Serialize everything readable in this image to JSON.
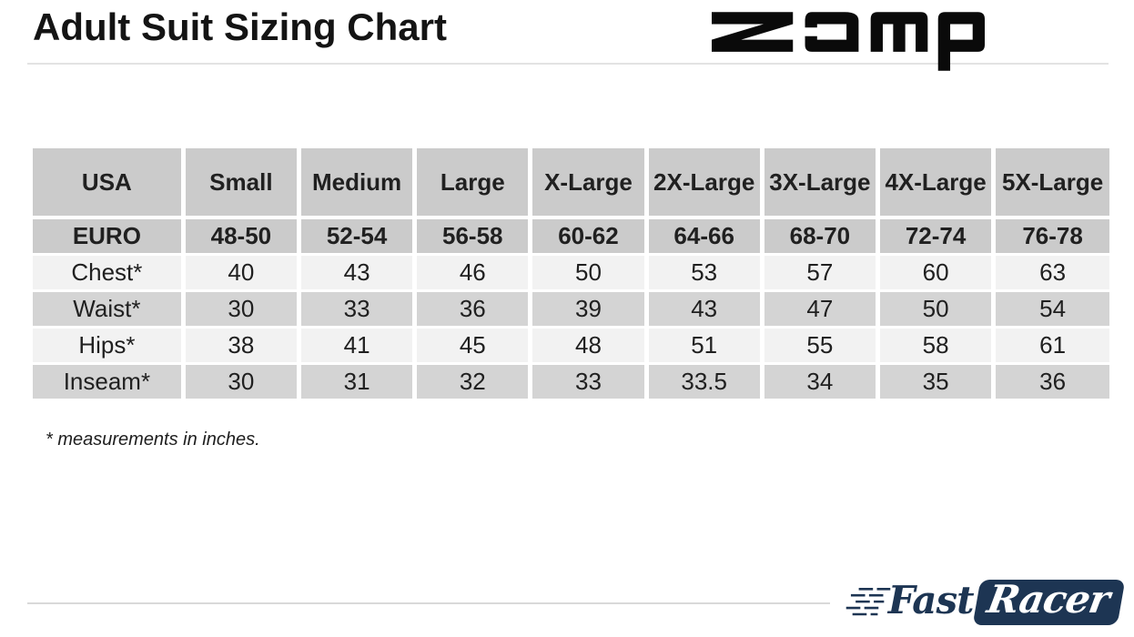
{
  "header": {
    "title": "Adult Suit Sizing Chart",
    "brand": "zamp"
  },
  "table": {
    "columns": [
      "USA",
      "Small",
      "Medium",
      "Large",
      "X-Large",
      "2X-Large",
      "3X-Large",
      "4X-Large",
      "5X-Large"
    ],
    "rows": [
      {
        "label": "EURO",
        "style": "euro",
        "values": [
          "48-50",
          "52-54",
          "56-58",
          "60-62",
          "64-66",
          "68-70",
          "72-74",
          "76-78"
        ]
      },
      {
        "label": "Chest*",
        "style": "light",
        "values": [
          "40",
          "43",
          "46",
          "50",
          "53",
          "57",
          "60",
          "63"
        ]
      },
      {
        "label": "Waist*",
        "style": "gray",
        "values": [
          "30",
          "33",
          "36",
          "39",
          "43",
          "47",
          "50",
          "54"
        ]
      },
      {
        "label": "Hips*",
        "style": "light",
        "values": [
          "38",
          "41",
          "45",
          "48",
          "51",
          "55",
          "58",
          "61"
        ]
      },
      {
        "label": "Inseam*",
        "style": "gray",
        "values": [
          "30",
          "31",
          "32",
          "33",
          "33.5",
          "34",
          "35",
          "36"
        ]
      }
    ]
  },
  "footnote": "* measurements in inches.",
  "footer": {
    "logo_fast": "Fast",
    "logo_racer": "Racer"
  },
  "colors": {
    "header_row": "#cbcbcb",
    "alt_row": "#d4d4d4",
    "light_row": "#f2f2f2",
    "navy": "#1d3553",
    "rule": "#e3e3e3"
  }
}
